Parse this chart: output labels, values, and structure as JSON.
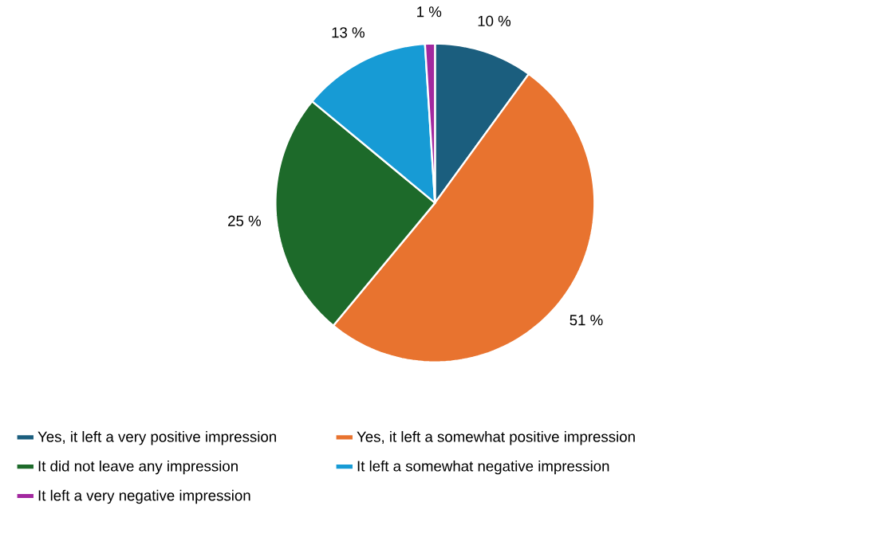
{
  "chart_data": {
    "type": "pie",
    "categories": [
      "Yes, it left a very positive impression",
      "Yes, it left a somewhat positive impression",
      "It did not leave any impression",
      "It left a somewhat negative impression",
      "It left a very negative impression"
    ],
    "values": [
      10,
      51,
      25,
      13,
      1
    ],
    "value_labels": [
      "10 %",
      "51 %",
      "25 %",
      "13 %",
      "1 %"
    ],
    "colors": [
      "#1b5e7e",
      "#e8732f",
      "#1d6a2a",
      "#179bd5",
      "#a2289f"
    ],
    "legend": "bottom"
  }
}
